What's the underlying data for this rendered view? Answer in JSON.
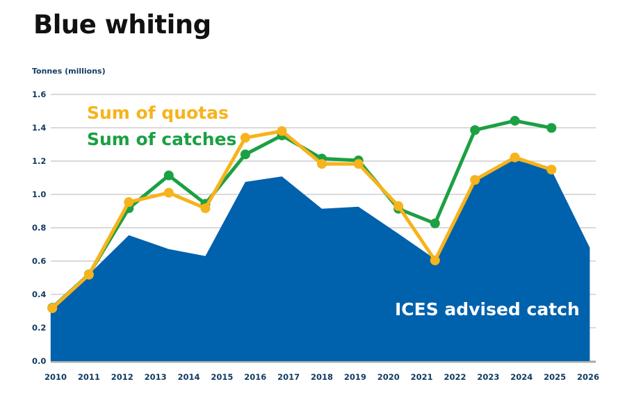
{
  "title": "Blue whiting",
  "chart_data": {
    "type": "line",
    "title": "Blue whiting",
    "ylabel": "Tonnes (millions)",
    "xlabel": "",
    "ylim": [
      0,
      1.6
    ],
    "xlim": [
      2010,
      2026
    ],
    "grid": true,
    "yticks": [
      "0.0",
      "0.2",
      "0.4",
      "0.6",
      "0.8",
      "1.0",
      "1.2",
      "1.4",
      "1.6"
    ],
    "xticks": [
      "2010",
      "2011",
      "2012",
      "2013",
      "2014",
      "2015",
      "2016",
      "2017",
      "2018",
      "2019",
      "2020",
      "2021",
      "2022",
      "2023",
      "2024",
      "2025",
      "2026"
    ],
    "colors": {
      "advice": "#0061ad",
      "quotas": "#f7b31c",
      "catches": "#1ba043",
      "grid": "#c4c4c4",
      "axis_text": "#123a63"
    },
    "series": [
      {
        "name": "ICES advised catch",
        "type": "area",
        "x": [
          2009.85,
          2011.0,
          2012.2,
          2013.4,
          2014.5,
          2015.7,
          2016.8,
          2018.0,
          2019.1,
          2020.3,
          2021.4,
          2022.6,
          2023.8,
          2024.9,
          2026.05
        ],
        "y": [
          0.3,
          0.52,
          0.755,
          0.672,
          0.63,
          1.075,
          1.108,
          0.914,
          0.926,
          0.764,
          0.612,
          1.097,
          1.208,
          1.146,
          0.68
        ]
      },
      {
        "name": "Sum of catches",
        "type": "line",
        "x": [
          2009.9,
          2011.0,
          2012.2,
          2013.4,
          2014.5,
          2015.7,
          2016.8,
          2018.0,
          2019.1,
          2020.3,
          2021.4,
          2022.6,
          2023.8,
          2024.9
        ],
        "y": [
          0.32,
          0.52,
          0.917,
          1.114,
          0.944,
          1.24,
          1.354,
          1.215,
          1.204,
          0.914,
          0.826,
          1.386,
          1.442,
          1.399
        ]
      },
      {
        "name": "Sum of quotas",
        "type": "line",
        "x": [
          2009.9,
          2011.0,
          2012.2,
          2013.4,
          2014.5,
          2015.7,
          2016.8,
          2018.0,
          2019.1,
          2020.3,
          2021.4,
          2022.6,
          2023.8,
          2024.9
        ],
        "y": [
          0.317,
          0.518,
          0.954,
          1.01,
          0.917,
          1.34,
          1.38,
          1.183,
          1.183,
          0.93,
          0.604,
          1.087,
          1.222,
          1.149
        ]
      }
    ]
  }
}
